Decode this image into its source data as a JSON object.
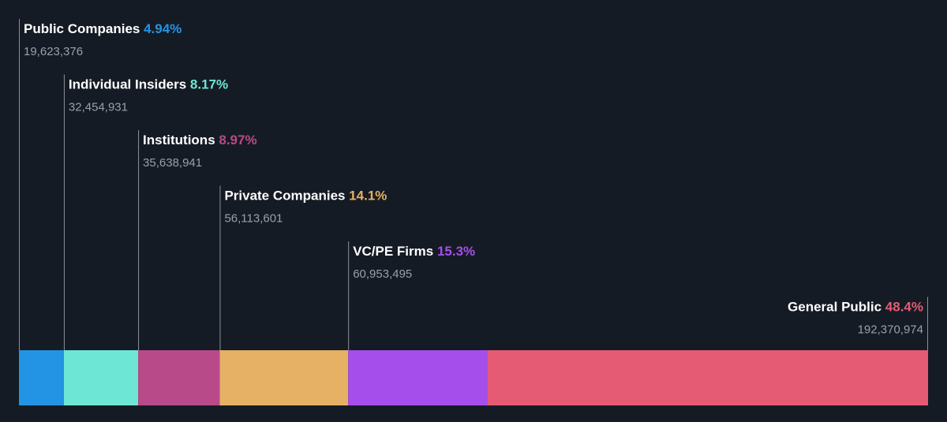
{
  "chart_data": {
    "type": "bar",
    "orientation": "stacked-horizontal",
    "categories": [
      "Public Companies",
      "Individual Insiders",
      "Institutions",
      "Private Companies",
      "VC/PE Firms",
      "General Public"
    ],
    "percent_labels": [
      "4.94%",
      "8.17%",
      "8.97%",
      "14.1%",
      "15.3%",
      "48.4%"
    ],
    "values": [
      19623376,
      32454931,
      35638941,
      56113601,
      60953495,
      192370974
    ],
    "value_labels": [
      "19,623,376",
      "32,454,931",
      "35,638,941",
      "56,113,601",
      "60,953,495",
      "192,370,974"
    ],
    "colors": [
      "#2394e3",
      "#6ee6d6",
      "#b84a8a",
      "#e6b065",
      "#a64eeb",
      "#e65b74"
    ],
    "background": "#151b24",
    "grid": false,
    "legend": "none"
  }
}
